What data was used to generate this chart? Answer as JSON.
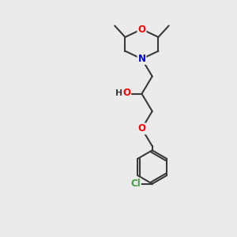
{
  "bg_color": "#ebebeb",
  "bond_color": "#3a3a3a",
  "bond_width": 1.5,
  "atom_colors": {
    "O": "#ff0000",
    "N": "#0000cc",
    "Cl": "#4a9a4a",
    "C": "#3a3a3a",
    "H": "#3a3a3a"
  },
  "font_size_atom": 8.5,
  "font_size_small": 7.0
}
